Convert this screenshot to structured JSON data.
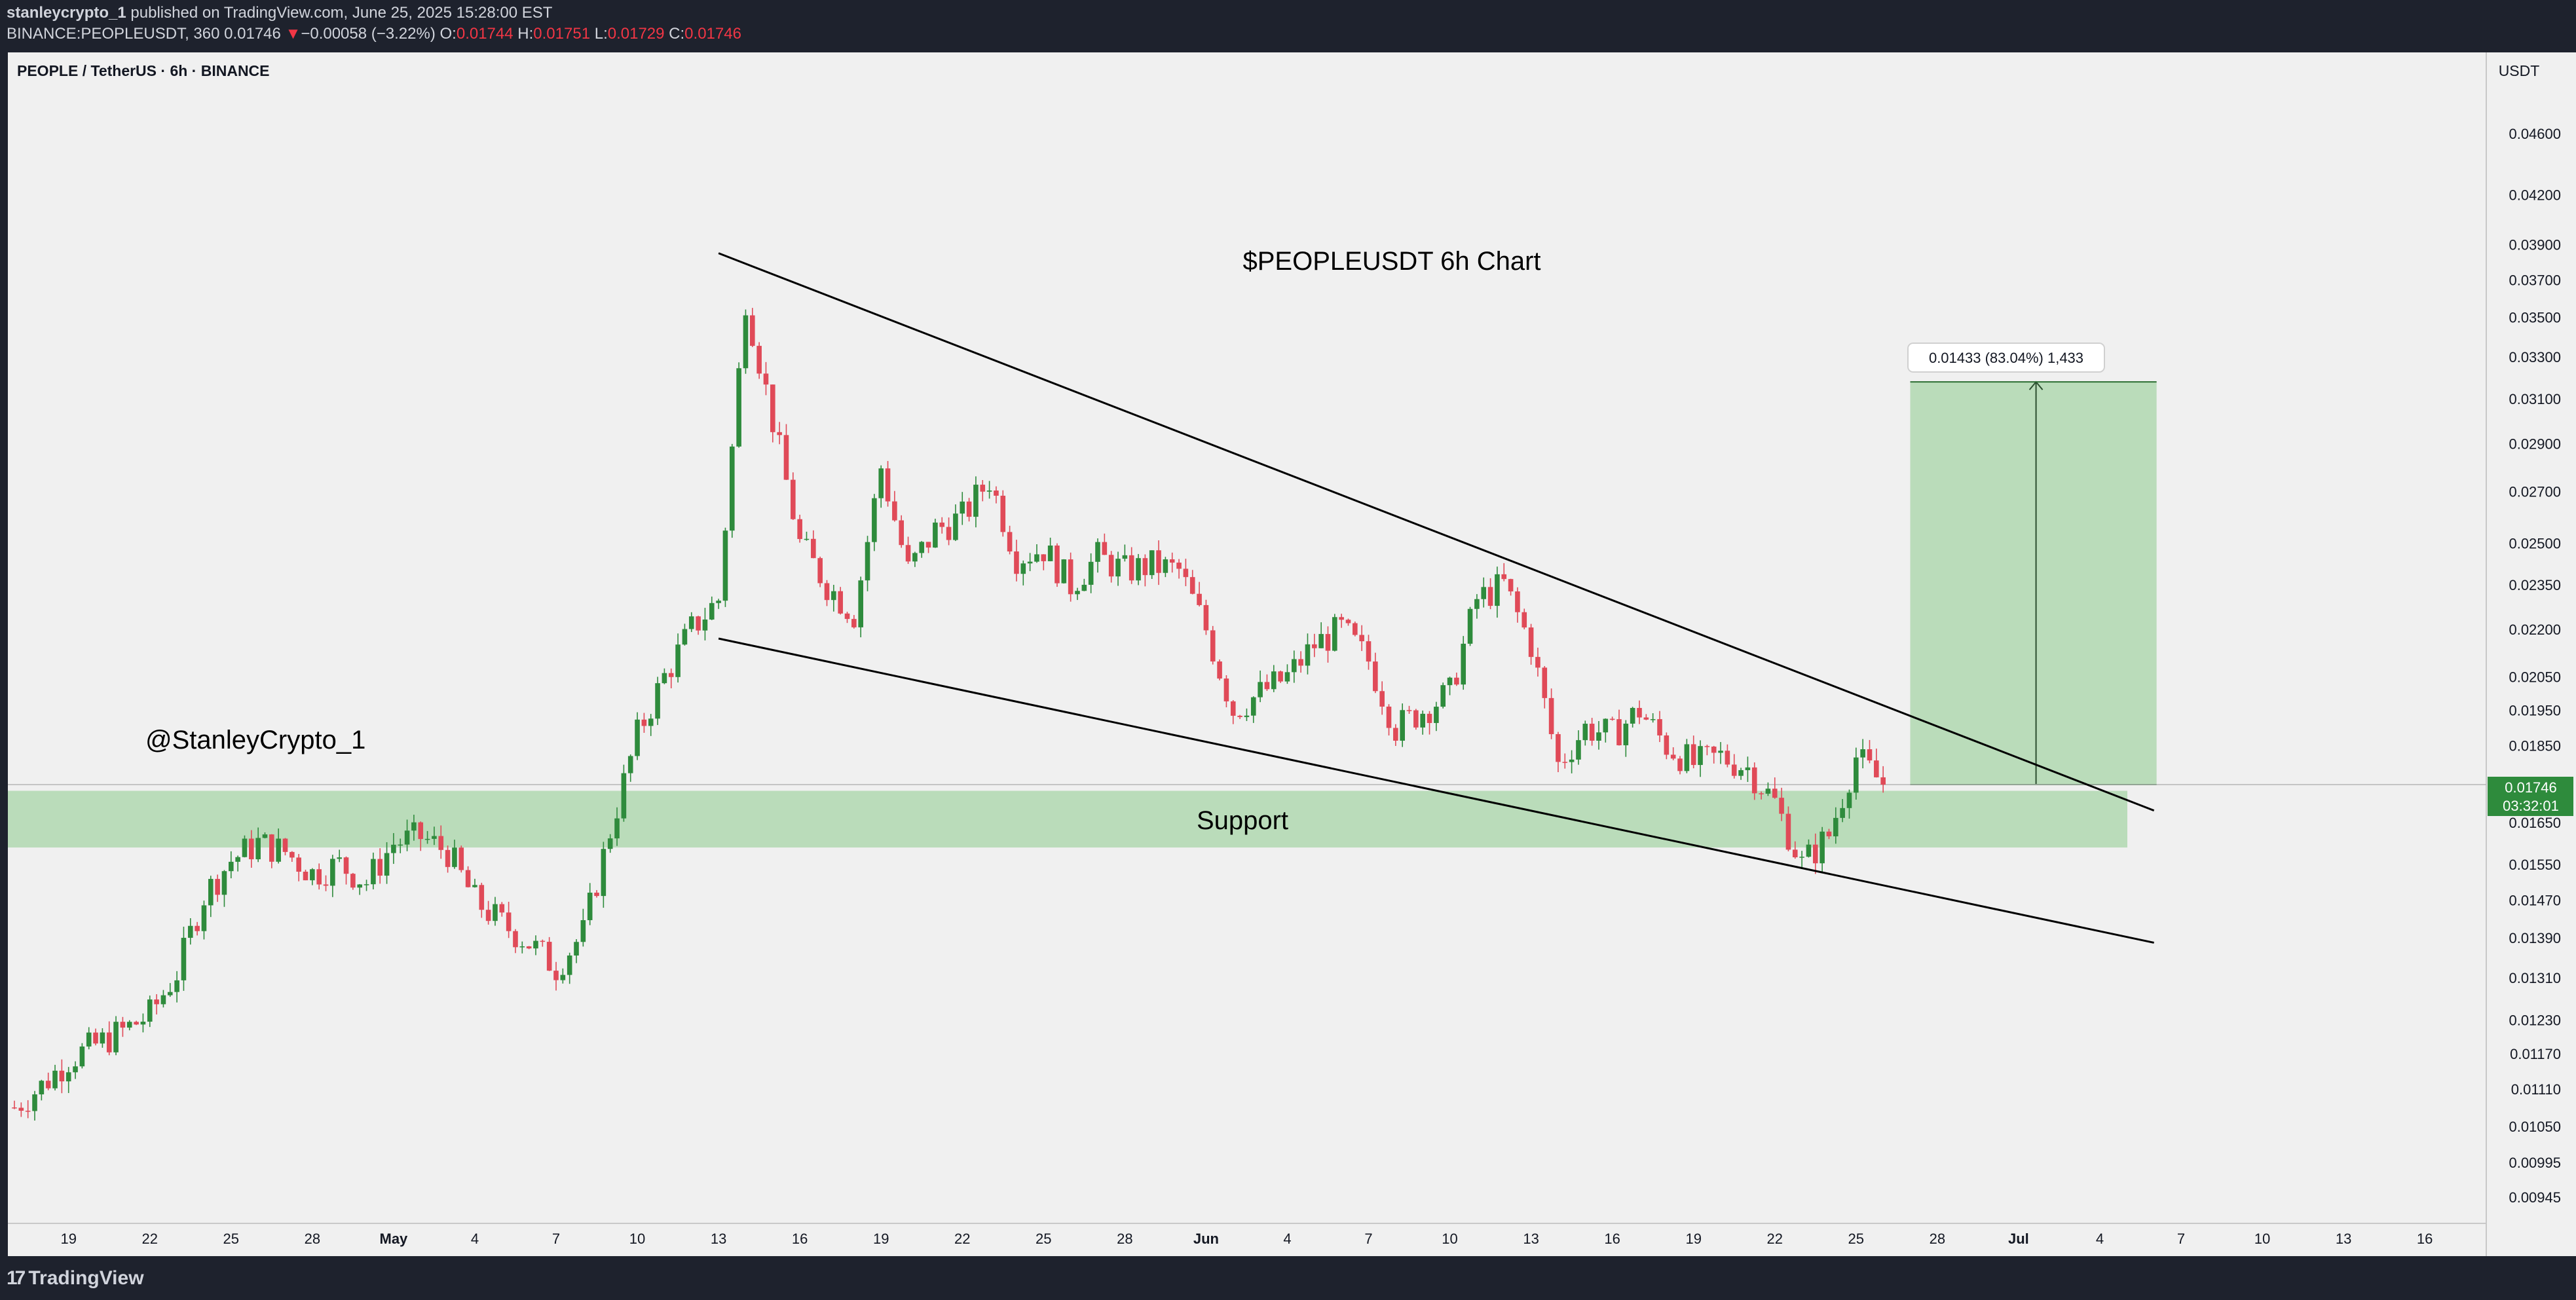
{
  "header": {
    "publisher": "stanleycrypto_1",
    "published_text": " published on TradingView.com, June 25, 2025 15:28:00 EST",
    "symbol_line": "BINANCE:PEOPLEUSDT, 360",
    "last": "0.01746",
    "change_arrow": "▼",
    "change": "−0.00058 (−3.22%)",
    "o_label": "O:",
    "o_value": "0.01744",
    "h_label": "H:",
    "h_value": "0.01751",
    "l_label": "L:",
    "l_value": "0.01729",
    "c_label": "C:",
    "c_value": "0.01746"
  },
  "pane": {
    "legend": "PEOPLE / TetherUS · 6h · BINANCE",
    "currency": "USDT",
    "title_text": "$PEOPLEUSDT 6h Chart",
    "author_text": "@StanleyCrypto_1",
    "support_text": "Support",
    "measure_label": "0.01433 (83.04%) 1,433",
    "last_price_label": "0.01746",
    "countdown_label": "03:32:01"
  },
  "footer": {
    "brand": "TradingView"
  },
  "colors": {
    "up": "#2e8b3c",
    "down": "#e04a58",
    "support_zone": "#a8d5a8",
    "target_zone": "#a8d5a8",
    "last_price_badge": "#2e8b3c",
    "pane_bg": "#f0f0f0"
  },
  "chart_data": {
    "type": "candlestick",
    "title": "$PEOPLEUSDT 6h Chart",
    "y_scale": "log",
    "y_ticks": [
      "0.04600",
      "0.04200",
      "0.03900",
      "0.03700",
      "0.03500",
      "0.03300",
      "0.03100",
      "0.02900",
      "0.02700",
      "0.02500",
      "0.02350",
      "0.02200",
      "0.02050",
      "0.01950",
      "0.01850",
      "0.01650",
      "0.01550",
      "0.01470",
      "0.01390",
      "0.01310",
      "0.01230",
      "0.01170",
      "0.01110",
      "0.01050",
      "0.00995",
      "0.00945"
    ],
    "x_ticks": [
      "19",
      "22",
      "25",
      "28",
      "May",
      "4",
      "7",
      "10",
      "13",
      "16",
      "19",
      "22",
      "25",
      "28",
      "Jun",
      "4",
      "7",
      "10",
      "13",
      "16",
      "19",
      "22",
      "25",
      "28",
      "Jul",
      "4",
      "7",
      "10",
      "13",
      "16"
    ],
    "close_path": [
      [
        "2025-04-17",
        0.0108
      ],
      [
        "2025-04-18",
        0.01115
      ],
      [
        "2025-04-19",
        0.0116
      ],
      [
        "2025-04-20",
        0.01185
      ],
      [
        "2025-04-21",
        0.0121
      ],
      [
        "2025-04-22",
        0.0124
      ],
      [
        "2025-04-23",
        0.0132
      ],
      [
        "2025-04-24",
        0.0148
      ],
      [
        "2025-04-25",
        0.0156
      ],
      [
        "2025-04-26",
        0.016
      ],
      [
        "2025-04-27",
        0.0158
      ],
      [
        "2025-04-28",
        0.0153
      ],
      [
        "2025-04-29",
        0.0155
      ],
      [
        "2025-04-30",
        0.0151
      ],
      [
        "2025-05-01",
        0.016
      ],
      [
        "2025-05-02",
        0.01615
      ],
      [
        "2025-05-03",
        0.0158
      ],
      [
        "2025-05-04",
        0.0147
      ],
      [
        "2025-05-05",
        0.0142
      ],
      [
        "2025-05-06",
        0.0138
      ],
      [
        "2025-05-07",
        0.0133
      ],
      [
        "2025-05-08",
        0.014
      ],
      [
        "2025-05-09",
        0.0163
      ],
      [
        "2025-05-10",
        0.0188
      ],
      [
        "2025-05-11",
        0.0205
      ],
      [
        "2025-05-12",
        0.022
      ],
      [
        "2025-05-13",
        0.023
      ],
      [
        "2025-05-14",
        0.036
      ],
      [
        "2025-05-15",
        0.03
      ],
      [
        "2025-05-16",
        0.025
      ],
      [
        "2025-05-17",
        0.0235
      ],
      [
        "2025-05-18",
        0.0225
      ],
      [
        "2025-05-19",
        0.028
      ],
      [
        "2025-05-20",
        0.024
      ],
      [
        "2025-05-21",
        0.0255
      ],
      [
        "2025-05-22",
        0.026
      ],
      [
        "2025-05-23",
        0.0275
      ],
      [
        "2025-05-24",
        0.0245
      ],
      [
        "2025-05-25",
        0.0248
      ],
      [
        "2025-05-26",
        0.0235
      ],
      [
        "2025-05-27",
        0.0245
      ],
      [
        "2025-05-28",
        0.024
      ],
      [
        "2025-05-29",
        0.0242
      ],
      [
        "2025-05-30",
        0.024
      ],
      [
        "2025-05-31",
        0.022
      ],
      [
        "2025-06-01",
        0.0195
      ],
      [
        "2025-06-02",
        0.02
      ],
      [
        "2025-06-03",
        0.0205
      ],
      [
        "2025-06-04",
        0.0215
      ],
      [
        "2025-06-05",
        0.022
      ],
      [
        "2025-06-06",
        0.021
      ],
      [
        "2025-06-07",
        0.019
      ],
      [
        "2025-06-08",
        0.0195
      ],
      [
        "2025-06-09",
        0.02
      ],
      [
        "2025-06-10",
        0.023
      ],
      [
        "2025-06-11",
        0.0235
      ],
      [
        "2025-06-12",
        0.0215
      ],
      [
        "2025-06-13",
        0.018
      ],
      [
        "2025-06-14",
        0.019
      ],
      [
        "2025-06-15",
        0.0188
      ],
      [
        "2025-06-16",
        0.0195
      ],
      [
        "2025-06-17",
        0.0185
      ],
      [
        "2025-06-18",
        0.018
      ],
      [
        "2025-06-19",
        0.0182
      ],
      [
        "2025-06-20",
        0.0179
      ],
      [
        "2025-06-21",
        0.017
      ],
      [
        "2025-06-22",
        0.0155
      ],
      [
        "2025-06-23",
        0.0162
      ],
      [
        "2025-06-24",
        0.0182
      ],
      [
        "2025-06-25",
        0.01746
      ]
    ],
    "last_close": 0.01746,
    "support_zone": {
      "label": "Support",
      "low": 0.0159,
      "high": 0.0173
    },
    "falling_wedge": {
      "upper_line": [
        [
          "2025-05-13",
          0.0385
        ],
        [
          "2025-07-05",
          0.0168
        ]
      ],
      "lower_line": [
        [
          "2025-05-13",
          0.0217
        ],
        [
          "2025-07-05",
          0.0138
        ]
      ]
    },
    "target_projection": {
      "from": 0.01746,
      "to": 0.03179,
      "change": 0.01433,
      "percent": 83.04,
      "ticks": 1433
    }
  }
}
